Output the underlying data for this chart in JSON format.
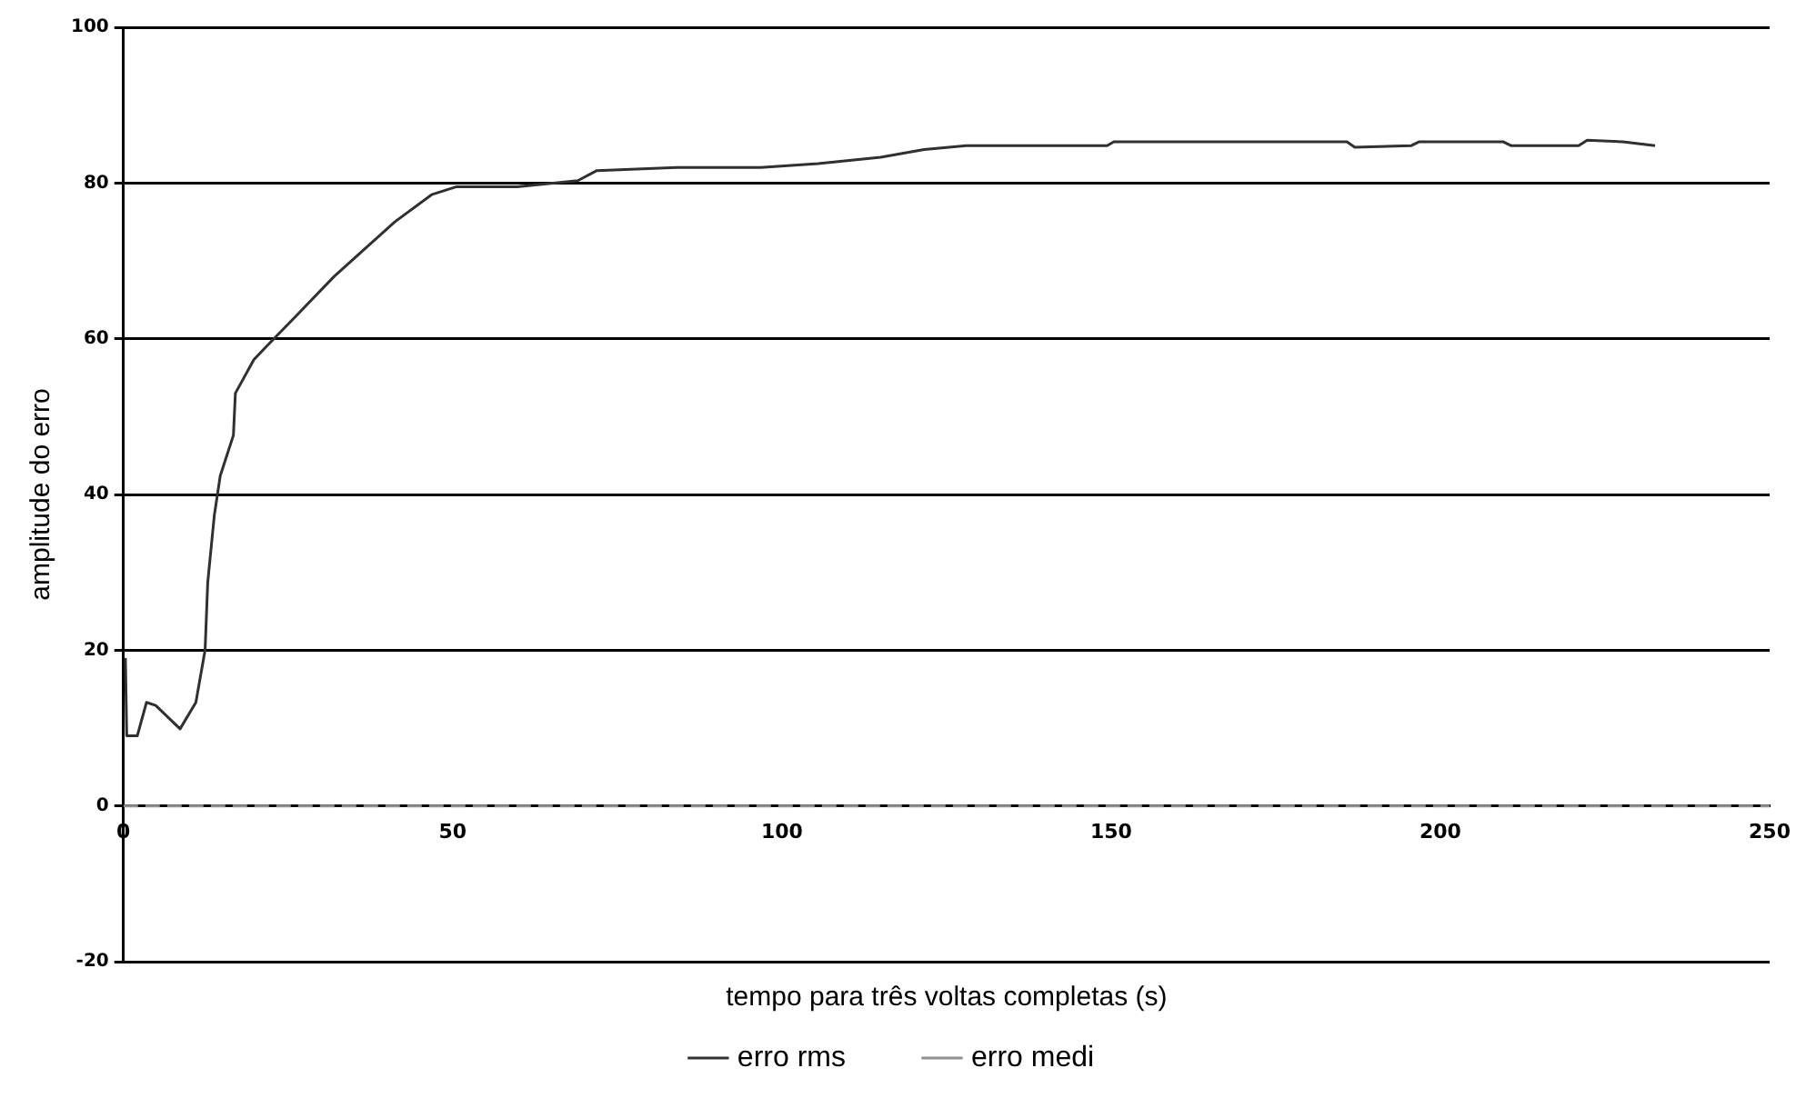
{
  "chart_data": {
    "type": "line",
    "xlabel": "tempo para três voltas completas (s)",
    "ylabel": "amplitude do erro",
    "xlim": [
      0,
      250
    ],
    "xticks": [
      0,
      50,
      100,
      150,
      200,
      250
    ],
    "ylim": [
      -20,
      100
    ],
    "yticks": [
      -20,
      0,
      20,
      40,
      60,
      80,
      100
    ],
    "grid": "y",
    "legend": "bottom",
    "marker": "none",
    "series": [
      {
        "name": "erro rms",
        "color": "#303030",
        "line_style": "solid",
        "x": [
          0.3,
          0.5,
          2.1,
          3.5,
          4.9,
          8.6,
          11,
          12.4,
          12.8,
          13.8,
          14.7,
          16.7,
          17,
          19.8,
          21.7,
          26.3,
          32,
          36.6,
          41.2,
          46.8,
          50.5,
          59.8,
          69,
          71.9,
          84,
          96.8,
          105.5,
          115,
          121.6,
          128,
          149.4,
          150.4,
          185.8,
          187,
          195.6,
          196.8,
          209.5,
          210.7,
          221,
          222.3,
          227.7,
          232.6
        ],
        "values": [
          19,
          9,
          9,
          13.3,
          12.9,
          9.9,
          13.3,
          20,
          28.7,
          37.3,
          42.4,
          47.6,
          53,
          57.3,
          59,
          63,
          68,
          71.5,
          75,
          78.5,
          79.5,
          79.5,
          80.3,
          81.6,
          82,
          82,
          82.5,
          83.3,
          84.3,
          84.8,
          84.8,
          85.3,
          85.3,
          84.6,
          84.8,
          85.3,
          85.3,
          84.8,
          84.8,
          85.5,
          85.3,
          84.8
        ]
      },
      {
        "name": "erro medi",
        "color": "#909090",
        "line_style": "dashed",
        "x": [
          0,
          250
        ],
        "values": [
          0,
          0
        ]
      }
    ]
  }
}
